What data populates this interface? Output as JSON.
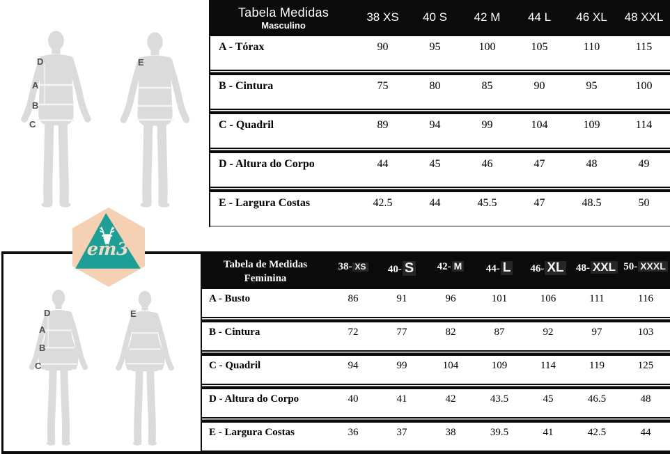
{
  "brand": {
    "logo_text": "em3",
    "colors": {
      "hexagon": "#f6d0b2",
      "triangle": "#1d9e96",
      "header_bg": "#0b0b0b",
      "silhouette": "#dbdbdb"
    }
  },
  "measure_points": {
    "d": "D",
    "a": "A",
    "b": "B",
    "c": "C",
    "e": "E"
  },
  "table_masculino": {
    "title": "Tabela Medidas",
    "subtitle": "Masculino",
    "columns": [
      "38 XS",
      "40 S",
      "42 M",
      "44 L",
      "46 XL",
      "48 XXL"
    ],
    "rows": [
      {
        "label": "A - Tórax",
        "values": [
          "90",
          "95",
          "100",
          "105",
          "110",
          "115"
        ]
      },
      {
        "label": "B - Cintura",
        "values": [
          "75",
          "80",
          "85",
          "90",
          "95",
          "100"
        ]
      },
      {
        "label": "C - Quadril",
        "values": [
          "89",
          "94",
          "99",
          "104",
          "109",
          "114"
        ]
      },
      {
        "label": "D - Altura do Corpo",
        "values": [
          "44",
          "45",
          "46",
          "47",
          "48",
          "49"
        ]
      },
      {
        "label": "E - Largura Costas",
        "values": [
          "42.5",
          "44",
          "45.5",
          "47",
          "48.5",
          "50"
        ]
      }
    ]
  },
  "table_feminina": {
    "title": "Tabela de Medidas",
    "subtitle": "Feminina",
    "columns": [
      {
        "num": "38-",
        "letter": "XS"
      },
      {
        "num": "40-",
        "letter": "S"
      },
      {
        "num": "42-",
        "letter": "M"
      },
      {
        "num": "44-",
        "letter": "L"
      },
      {
        "num": "46-",
        "letter": "XL"
      },
      {
        "num": "48-",
        "letter": "XXL"
      },
      {
        "num": "50-",
        "letter": "XXXL"
      }
    ],
    "rows": [
      {
        "label": "A - Busto",
        "values": [
          "86",
          "91",
          "96",
          "101",
          "106",
          "111",
          "116"
        ]
      },
      {
        "label": "B - Cintura",
        "values": [
          "72",
          "77",
          "82",
          "87",
          "92",
          "97",
          "103"
        ]
      },
      {
        "label": "C - Quadril",
        "values": [
          "94",
          "99",
          "104",
          "109",
          "114",
          "119",
          "125"
        ]
      },
      {
        "label": "D - Altura do Corpo",
        "values": [
          "40",
          "41",
          "42",
          "43.5",
          "45",
          "46.5",
          "48"
        ]
      },
      {
        "label": "E - Largura Costas",
        "values": [
          "36",
          "37",
          "38",
          "39.5",
          "41",
          "42.5",
          "44"
        ]
      }
    ]
  }
}
